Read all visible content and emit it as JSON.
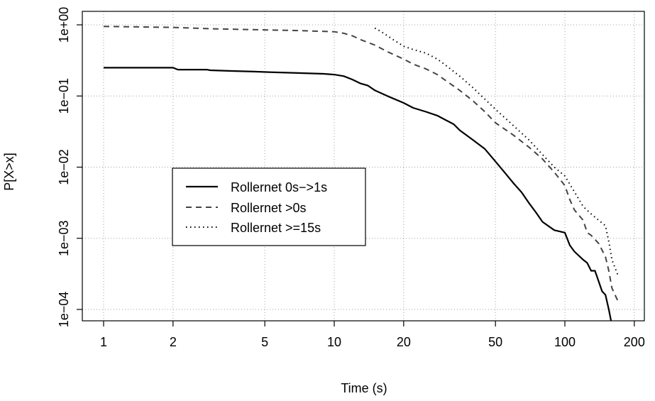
{
  "chart_data": {
    "type": "line",
    "xscale": "log",
    "yscale": "log",
    "xlabel": "Time (s)",
    "ylabel": "P[X>x]",
    "xlim": [
      0.82,
      230
    ],
    "ylim": [
      6e-05,
      1.4
    ],
    "xticks": [
      1,
      2,
      5,
      10,
      20,
      50,
      100,
      200
    ],
    "xtick_labels": [
      "1",
      "2",
      "5",
      "10",
      "20",
      "50",
      "100",
      "200"
    ],
    "yticks": [
      0.0001,
      0.001,
      0.01,
      0.1,
      1
    ],
    "ytick_labels": [
      "1e−04",
      "1e−03",
      "1e−02",
      "1e−01",
      "1e+00"
    ],
    "grid": true,
    "legend_position": "center-left",
    "series": [
      {
        "name": "Rollernet 0s−>1s",
        "style": "solid",
        "x": [
          1,
          2,
          2.1,
          2.8,
          2.9,
          3.5,
          4.5,
          5.5,
          7,
          9,
          10,
          11,
          12,
          13,
          14,
          15,
          17,
          20,
          22,
          25,
          28,
          30,
          33,
          35,
          40,
          45,
          50,
          55,
          60,
          65,
          70,
          75,
          80,
          90,
          100,
          105,
          110,
          120,
          125,
          130,
          135,
          140,
          145,
          150,
          155,
          160,
          165
        ],
        "y": [
          0.25,
          0.25,
          0.235,
          0.235,
          0.23,
          0.225,
          0.22,
          0.215,
          0.21,
          0.205,
          0.2,
          0.19,
          0.17,
          0.15,
          0.14,
          0.12,
          0.1,
          0.08,
          0.068,
          0.06,
          0.053,
          0.047,
          0.04,
          0.033,
          0.024,
          0.018,
          0.012,
          0.0083,
          0.0059,
          0.0044,
          0.0031,
          0.0023,
          0.0017,
          0.0013,
          0.0012,
          0.0008,
          0.00065,
          0.0005,
          0.00045,
          0.00035,
          0.00035,
          0.00025,
          0.00018,
          0.00016,
          0.0001,
          6e-05,
          6e-05
        ]
      },
      {
        "name": "Rollernet >0s",
        "style": "dashed",
        "x": [
          1,
          2,
          3,
          5,
          7,
          10,
          11,
          12,
          13,
          15,
          17,
          20,
          22,
          25,
          28,
          30,
          35,
          40,
          45,
          50,
          60,
          70,
          80,
          90,
          100,
          105,
          110,
          120,
          125,
          130,
          140,
          150,
          155,
          160,
          170
        ],
        "y": [
          0.95,
          0.92,
          0.88,
          0.85,
          0.83,
          0.8,
          0.76,
          0.7,
          0.62,
          0.52,
          0.42,
          0.33,
          0.28,
          0.24,
          0.2,
          0.17,
          0.12,
          0.085,
          0.06,
          0.042,
          0.028,
          0.019,
          0.013,
          0.0085,
          0.0055,
          0.0035,
          0.0025,
          0.0018,
          0.0012,
          0.0011,
          0.00085,
          0.00055,
          0.00035,
          0.0002,
          0.00013
        ]
      },
      {
        "name": "Rollernet >=15s",
        "style": "dotted",
        "x": [
          15,
          16,
          18,
          20,
          22,
          25,
          28,
          30,
          35,
          40,
          45,
          50,
          60,
          70,
          80,
          90,
          100,
          110,
          120,
          130,
          140,
          150,
          155,
          160,
          170
        ],
        "y": [
          0.9,
          0.8,
          0.62,
          0.5,
          0.45,
          0.4,
          0.33,
          0.28,
          0.19,
          0.13,
          0.09,
          0.065,
          0.038,
          0.024,
          0.015,
          0.01,
          0.0075,
          0.0045,
          0.0028,
          0.0022,
          0.0018,
          0.0015,
          0.0009,
          0.0005,
          0.0003
        ]
      }
    ]
  }
}
